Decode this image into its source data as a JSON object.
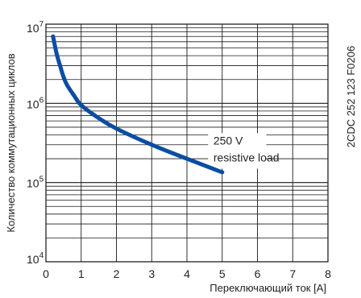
{
  "chart_data": {
    "type": "line",
    "title": "",
    "xlabel": "Переключающий ток [A]",
    "ylabel": "Количество коммутационных циклов",
    "y_scale": "log",
    "xlim": [
      0,
      8
    ],
    "ylim": [
      10000,
      10000000
    ],
    "grid": true,
    "x_ticks": [
      "0",
      "1",
      "2",
      "3",
      "4",
      "5",
      "6",
      "7",
      "8"
    ],
    "y_ticks": [
      {
        "base": "10",
        "exp": "4"
      },
      {
        "base": "10",
        "exp": "5"
      },
      {
        "base": "10",
        "exp": "6"
      },
      {
        "base": "10",
        "exp": "7"
      }
    ],
    "series": [
      {
        "color": "#0b4da2",
        "x": [
          0.2,
          0.3,
          0.4,
          0.5,
          0.6,
          0.8,
          1.0,
          1.5,
          2.0,
          3.0,
          4.0,
          5.0
        ],
        "y": [
          7000000,
          4300000,
          3000000,
          2150000,
          1700000,
          1250000,
          950000,
          650000,
          480000,
          300000,
          200000,
          135000
        ]
      }
    ],
    "annotation": {
      "line1": "250 V",
      "line2": "resistive load"
    },
    "code_label": "2CDC 252 123 F0206"
  }
}
